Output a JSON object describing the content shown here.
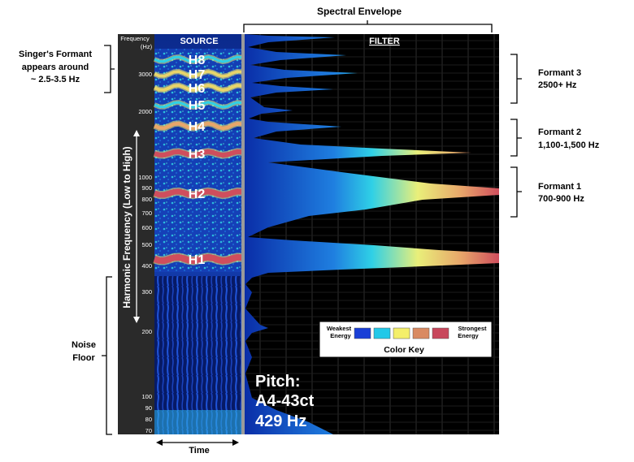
{
  "header": {
    "spectral_envelope": "Spectral Envelope"
  },
  "axis": {
    "frequency_label_line1": "Frequency",
    "frequency_label_line2": "(Hz)",
    "ticks": [
      "3000",
      "2000",
      "1000",
      "900",
      "800",
      "700",
      "600",
      "500",
      "400",
      "300",
      "200",
      "100",
      "90",
      "80",
      "70"
    ],
    "vertical_label": "Harmonic Frequency (Low to High)",
    "time_label": "Time"
  },
  "panels": {
    "source": "SOURCE",
    "filter": "FILTER"
  },
  "harmonics": [
    "H8",
    "H7",
    "H6",
    "H5",
    "H4",
    "H3",
    "H2",
    "H1"
  ],
  "annotations": {
    "singers_formant": [
      "Singer's Formant",
      "appears around",
      "~ 2.5-3.5 Hz"
    ],
    "noise_floor": [
      "Noise",
      "Floor"
    ],
    "formant3": [
      "Formant 3",
      "2500+ Hz"
    ],
    "formant2": [
      "Formant 2",
      "1,100-1,500 Hz"
    ],
    "formant1": [
      "Formant 1",
      "700-900 Hz"
    ]
  },
  "pitch": {
    "label": "Pitch:",
    "note": "A4-43ct",
    "hz": "429 Hz"
  },
  "color_key": {
    "title": "Color Key",
    "weakest": [
      "Weakest",
      "Energy"
    ],
    "strongest": [
      "Strongest",
      "Energy"
    ],
    "colors": [
      "#1a3fd6",
      "#22c8e8",
      "#f4ef6a",
      "#d98a62",
      "#c8475c"
    ]
  },
  "colors": {
    "panel_bg": "#000000",
    "axis_bg": "#2a2a2a",
    "low_energy": "#0a2ea8",
    "mid_energy": "#29c6e6",
    "high_energy": "#f4e36a",
    "peak_energy": "#d24a55"
  }
}
